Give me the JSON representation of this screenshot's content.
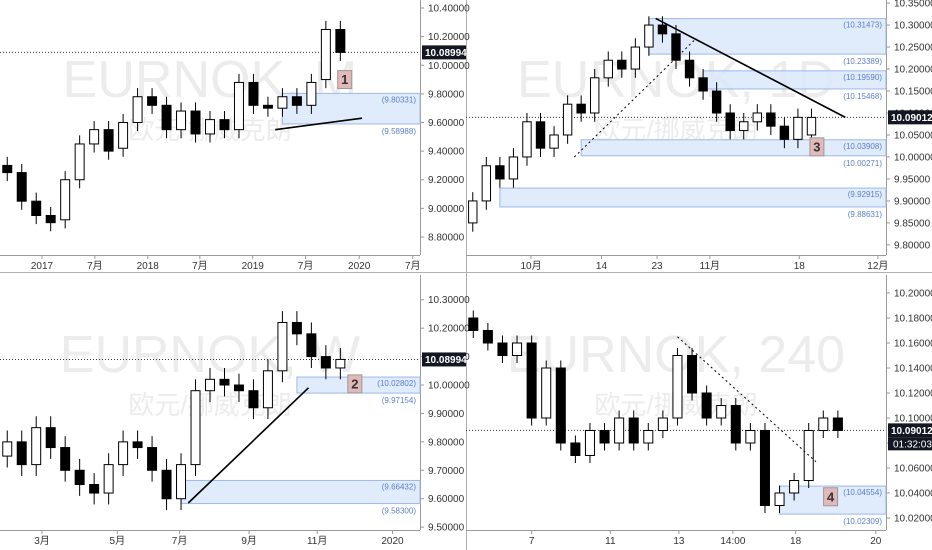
{
  "chart_data": [
    {
      "type": "candlestick",
      "title": "EURNOK, M",
      "subtitle": "欧元/挪威克朗",
      "up_color": "#ffffff",
      "down_color": "#000000",
      "open": [
        9.3,
        9.25,
        9.05,
        8.95,
        8.92,
        9.2,
        9.45,
        9.55,
        9.42,
        9.6,
        9.78,
        9.72,
        9.55,
        9.68,
        9.52,
        9.62,
        9.55,
        9.88,
        9.72,
        9.7,
        9.78,
        9.72,
        9.9,
        10.25
      ],
      "high": [
        9.36,
        9.31,
        9.11,
        9.01,
        9.26,
        9.51,
        9.61,
        9.61,
        9.66,
        9.84,
        9.84,
        9.78,
        9.74,
        9.74,
        9.68,
        9.68,
        9.94,
        9.94,
        9.78,
        9.84,
        9.84,
        9.94,
        10.31,
        10.31
      ],
      "low": [
        9.19,
        8.99,
        8.89,
        8.84,
        8.86,
        9.14,
        9.39,
        9.34,
        9.36,
        9.54,
        9.66,
        9.49,
        9.49,
        9.46,
        9.46,
        9.49,
        9.49,
        9.66,
        9.64,
        9.64,
        9.66,
        9.66,
        9.84,
        10.03
      ],
      "close": [
        9.25,
        9.05,
        8.95,
        8.9,
        9.2,
        9.45,
        9.55,
        9.4,
        9.6,
        9.78,
        9.72,
        9.55,
        9.68,
        9.52,
        9.62,
        9.55,
        9.88,
        9.72,
        9.7,
        9.78,
        9.72,
        9.88,
        10.25,
        10.09
      ],
      "xlim": [
        -0.5,
        28.5
      ],
      "xticks": [
        {
          "value": 2.4,
          "label": "2017"
        },
        {
          "value": 6.05,
          "label": "7月"
        },
        {
          "value": 9.7,
          "label": "2018"
        },
        {
          "value": 13.3,
          "label": "7月"
        },
        {
          "value": 16.95,
          "label": "2019"
        },
        {
          "value": 20.6,
          "label": "7月"
        },
        {
          "value": 24.3,
          "label": "2020"
        },
        {
          "value": 28,
          "label": "7月"
        }
      ],
      "ylim": [
        8.674,
        10.456
      ],
      "yticks": [
        {
          "value": 8.8,
          "label": "8.80000"
        },
        {
          "value": 9.0,
          "label": "9.00000"
        },
        {
          "value": 9.2,
          "label": "9.20000"
        },
        {
          "value": 9.4,
          "label": "9.40000"
        },
        {
          "value": 9.6,
          "label": "9.60000"
        },
        {
          "value": 9.8,
          "label": "9.80000"
        },
        {
          "value": 10.0,
          "label": "10.00000"
        },
        {
          "value": 10.2,
          "label": "10.20000"
        },
        {
          "value": 10.4,
          "label": "10.40000"
        }
      ],
      "last_price": 10.08994,
      "zones": [
        {
          "from": 19,
          "top": 9.80331,
          "bottom": 9.58988,
          "top_label": "(9.80331)",
          "bottom_label": "(9.58988)"
        }
      ],
      "lines": [
        {
          "x": [
            18.5,
            24.5
          ],
          "y": [
            9.55,
            9.63
          ],
          "dash": false
        }
      ],
      "badge": {
        "text": "1",
        "x": 23.3,
        "y": 9.9
      }
    },
    {
      "type": "candlestick",
      "title": "EURNOK, 1D",
      "subtitle": "欧元/挪威克朗",
      "up_color": "#ffffff",
      "down_color": "#000000",
      "open": [
        9.85,
        9.9,
        9.98,
        9.95,
        10.0,
        10.08,
        10.02,
        10.05,
        10.12,
        10.1,
        10.18,
        10.22,
        10.2,
        10.25,
        10.3,
        10.28,
        10.22,
        10.18,
        10.15,
        10.1,
        10.06,
        10.08,
        10.1,
        10.07,
        10.04,
        10.05
      ],
      "high": [
        9.92,
        10.0,
        10.0,
        10.02,
        10.1,
        10.1,
        10.07,
        10.14,
        10.14,
        10.2,
        10.24,
        10.24,
        10.27,
        10.32,
        10.32,
        10.3,
        10.24,
        10.2,
        10.17,
        10.12,
        10.1,
        10.12,
        10.12,
        10.09,
        10.11,
        10.11
      ],
      "low": [
        9.83,
        9.88,
        9.93,
        9.93,
        9.98,
        10.0,
        10.0,
        10.03,
        10.08,
        10.08,
        10.16,
        10.18,
        10.18,
        10.23,
        10.26,
        10.2,
        10.16,
        10.13,
        10.08,
        10.04,
        10.04,
        10.06,
        10.05,
        10.02,
        10.02,
        10.03
      ],
      "close": [
        9.9,
        9.98,
        9.95,
        10.0,
        10.08,
        10.02,
        10.05,
        10.12,
        10.1,
        10.18,
        10.22,
        10.2,
        10.25,
        10.3,
        10.28,
        10.22,
        10.18,
        10.15,
        10.1,
        10.06,
        10.08,
        10.1,
        10.07,
        10.04,
        10.09,
        10.09
      ],
      "xlim": [
        -0.5,
        30.5
      ],
      "xticks": [
        {
          "value": 4.3,
          "label": "10月"
        },
        {
          "value": 9.5,
          "label": "14"
        },
        {
          "value": 13.6,
          "label": "23"
        },
        {
          "value": 17.5,
          "label": "11月"
        },
        {
          "value": 24.1,
          "label": "18"
        },
        {
          "value": 29.9,
          "label": "12月"
        }
      ],
      "ylim": [
        9.777,
        10.357
      ],
      "yticks": [
        {
          "value": 9.8,
          "label": "9.80000"
        },
        {
          "value": 9.85,
          "label": "9.85000"
        },
        {
          "value": 9.9,
          "label": "9.90000"
        },
        {
          "value": 9.95,
          "label": "9.95000"
        },
        {
          "value": 10.0,
          "label": "10.00000"
        },
        {
          "value": 10.05,
          "label": "10.05000"
        },
        {
          "value": 10.1,
          "label": "10.10000"
        },
        {
          "value": 10.15,
          "label": "10.15000"
        },
        {
          "value": 10.2,
          "label": "10.20000"
        },
        {
          "value": 10.25,
          "label": "10.25000"
        },
        {
          "value": 10.3,
          "label": "10.30000"
        },
        {
          "value": 10.35,
          "label": "10.35000"
        }
      ],
      "last_price": 10.09012,
      "zones": [
        {
          "from": 13,
          "top": 10.31473,
          "bottom": 10.23389,
          "top_label": "(10.31473)",
          "bottom_label": "(10.23389)"
        },
        {
          "from": 17,
          "top": 10.1959,
          "bottom": 10.15468,
          "top_label": "(10.19590)",
          "bottom_label": "(10.15468)"
        },
        {
          "from": 8,
          "top": 10.03908,
          "bottom": 10.00271,
          "top_label": "(10.03908)",
          "bottom_label": "(10.00271)"
        },
        {
          "from": 2,
          "top": 9.92915,
          "bottom": 9.88631,
          "top_label": "(9.92915)",
          "bottom_label": "(9.88631)"
        }
      ],
      "lines": [
        {
          "x": [
            13.5,
            27.5
          ],
          "y": [
            10.315,
            10.09
          ],
          "dash": false
        },
        {
          "x": [
            7.5,
            16.5
          ],
          "y": [
            10.0,
            10.27
          ],
          "dash": true
        }
      ],
      "badge": {
        "text": "3",
        "x": 25.4,
        "y": 10.023
      }
    },
    {
      "type": "candlestick",
      "title": "EURNOK, W",
      "subtitle": "欧元/挪威克朗",
      "up_color": "#ffffff",
      "down_color": "#000000",
      "open": [
        9.75,
        9.8,
        9.72,
        9.85,
        9.78,
        9.7,
        9.65,
        9.62,
        9.72,
        9.8,
        9.78,
        9.7,
        9.6,
        9.72,
        9.98,
        10.02,
        10.0,
        9.98,
        9.92,
        10.05,
        10.22,
        10.18,
        10.1,
        10.06
      ],
      "high": [
        9.84,
        9.84,
        9.89,
        9.89,
        9.82,
        9.74,
        9.69,
        9.76,
        9.84,
        9.84,
        9.82,
        9.74,
        9.76,
        10.02,
        10.06,
        10.06,
        10.04,
        10.02,
        10.09,
        10.26,
        10.26,
        10.22,
        10.14,
        10.13
      ],
      "low": [
        9.71,
        9.68,
        9.68,
        9.74,
        9.66,
        9.61,
        9.58,
        9.58,
        9.68,
        9.74,
        9.66,
        9.56,
        9.56,
        9.68,
        9.94,
        9.96,
        9.94,
        9.88,
        9.88,
        10.01,
        10.14,
        10.06,
        10.02,
        10.02
      ],
      "close": [
        9.8,
        9.72,
        9.85,
        9.78,
        9.7,
        9.65,
        9.62,
        9.72,
        9.8,
        9.78,
        9.7,
        9.6,
        9.72,
        9.98,
        10.02,
        10.0,
        9.98,
        9.92,
        10.05,
        10.22,
        10.18,
        10.1,
        10.06,
        10.09
      ],
      "xlim": [
        -0.5,
        28.5
      ],
      "xticks": [
        {
          "value": 2.4,
          "label": "3月"
        },
        {
          "value": 7.6,
          "label": "5月"
        },
        {
          "value": 11.9,
          "label": "7月"
        },
        {
          "value": 16.7,
          "label": "9月"
        },
        {
          "value": 21.4,
          "label": "11月"
        },
        {
          "value": 26.6,
          "label": "2020"
        }
      ],
      "ylim": [
        9.49,
        10.387
      ],
      "yticks": [
        {
          "value": 9.5,
          "label": "9.50000"
        },
        {
          "value": 9.6,
          "label": "9.60000"
        },
        {
          "value": 9.7,
          "label": "9.70000"
        },
        {
          "value": 9.8,
          "label": "9.80000"
        },
        {
          "value": 9.9,
          "label": "9.90000"
        },
        {
          "value": 10.0,
          "label": "10.00000"
        },
        {
          "value": 10.1,
          "label": "10.10000"
        },
        {
          "value": 10.2,
          "label": "10.20000"
        },
        {
          "value": 10.3,
          "label": "10.30000"
        }
      ],
      "last_price": 10.08994,
      "zones": [
        {
          "from": 20,
          "top": 10.02802,
          "bottom": 9.97154,
          "top_label": "(10.02802)",
          "bottom_label": "(9.97154)"
        },
        {
          "from": 12,
          "top": 9.66432,
          "bottom": 9.583,
          "top_label": "(9.66432)",
          "bottom_label": "(9.58300)"
        }
      ],
      "lines": [
        {
          "x": [
            12.5,
            20.8
          ],
          "y": [
            9.585,
            9.99
          ],
          "dash": false
        }
      ],
      "badge": {
        "text": "2",
        "x": 24,
        "y": 10.004
      }
    },
    {
      "type": "candlestick",
      "title": "EURNOK, 240",
      "subtitle": "欧元/挪威克朗",
      "up_color": "#ffffff",
      "down_color": "#000000",
      "open": [
        10.18,
        10.17,
        10.16,
        10.15,
        10.16,
        10.1,
        10.14,
        10.08,
        10.07,
        10.09,
        10.08,
        10.1,
        10.08,
        10.09,
        10.1,
        10.15,
        10.12,
        10.1,
        10.11,
        10.08,
        10.09,
        10.03,
        10.04,
        10.05,
        10.09,
        10.1
      ],
      "high": [
        10.186,
        10.176,
        10.166,
        10.166,
        10.166,
        10.146,
        10.146,
        10.086,
        10.096,
        10.096,
        10.106,
        10.106,
        10.096,
        10.106,
        10.156,
        10.156,
        10.126,
        10.116,
        10.116,
        10.096,
        10.096,
        10.046,
        10.056,
        10.096,
        10.106,
        10.106
      ],
      "low": [
        10.164,
        10.154,
        10.144,
        10.144,
        10.094,
        10.094,
        10.074,
        10.064,
        10.064,
        10.074,
        10.074,
        10.074,
        10.074,
        10.084,
        10.094,
        10.114,
        10.094,
        10.094,
        10.074,
        10.074,
        10.024,
        10.024,
        10.034,
        10.044,
        10.084,
        10.084
      ],
      "close": [
        10.17,
        10.16,
        10.15,
        10.16,
        10.1,
        10.14,
        10.08,
        10.07,
        10.09,
        10.08,
        10.1,
        10.08,
        10.09,
        10.1,
        10.15,
        10.12,
        10.1,
        10.11,
        10.08,
        10.09,
        10.03,
        10.04,
        10.05,
        10.09,
        10.1,
        10.09
      ],
      "xlim": [
        -0.5,
        28.3
      ],
      "xticks": [
        {
          "value": 4.0,
          "label": "7"
        },
        {
          "value": 9.4,
          "label": "11"
        },
        {
          "value": 14.1,
          "label": "13"
        },
        {
          "value": 17.8,
          "label": "14:00"
        },
        {
          "value": 22.1,
          "label": "18"
        },
        {
          "value": 27.6,
          "label": "20"
        }
      ],
      "ylim": [
        10.0104,
        10.2144
      ],
      "yticks": [
        {
          "value": 10.02,
          "label": "10.02000"
        },
        {
          "value": 10.04,
          "label": "10.04000"
        },
        {
          "value": 10.06,
          "label": "10.06000"
        },
        {
          "value": 10.08,
          "label": "10.08000"
        },
        {
          "value": 10.1,
          "label": "10.10000"
        },
        {
          "value": 10.12,
          "label": "10.12000"
        },
        {
          "value": 10.14,
          "label": "10.14000"
        },
        {
          "value": 10.16,
          "label": "10.16000"
        },
        {
          "value": 10.18,
          "label": "10.18000"
        },
        {
          "value": 10.2,
          "label": "10.20000"
        }
      ],
      "last_price": 10.09012,
      "countdown": "01:32:03",
      "zones": [
        {
          "from": 21,
          "top": 10.04554,
          "bottom": 10.02309,
          "top_label": "(10.04554)",
          "bottom_label": "(10.02309)"
        }
      ],
      "lines": [
        {
          "x": [
            14,
            23.5
          ],
          "y": [
            10.165,
            10.065
          ],
          "dash": true
        }
      ],
      "badge": {
        "text": "4",
        "x": 24.5,
        "y": 10.037
      }
    }
  ]
}
